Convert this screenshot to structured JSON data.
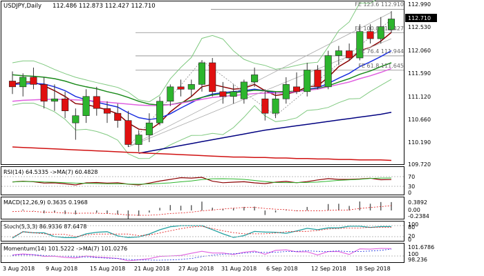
{
  "chart_header": {
    "symbol": "USDJPY,Daily",
    "ohlc": "112.486 112.873 112.427 112.710"
  },
  "price_axis": {
    "ticks": [
      "112.990",
      "112.530",
      "112.060",
      "111.590",
      "111.120",
      "110.660",
      "110.190",
      "109.720"
    ],
    "current_price": "112.710"
  },
  "fib_levels": [
    {
      "label": "FE 123.6 112.910",
      "value": 112.91
    },
    {
      "label": "FE 100.0 112.427",
      "value": 112.427
    },
    {
      "label": "FE 76.4 111.944",
      "value": 111.944
    },
    {
      "label": "FE 61.8 111.645",
      "value": 111.645
    }
  ],
  "date_axis": [
    "3 Aug 2018",
    "9 Aug 2018",
    "15 Aug 2018",
    "21 Aug 2018",
    "27 Aug 2018",
    "31 Aug 2018",
    "6 Sep 2018",
    "12 Sep 2018",
    "18 Sep 2018"
  ],
  "rsi": {
    "label": "RSI(14) 64.5335 ->MA(7) 60.4828",
    "levels": [
      "70",
      "30",
      "0"
    ]
  },
  "macd": {
    "label": "MACD(12,26,9) 0.3635 0.1968",
    "levels": [
      "0.3892",
      "0.00",
      "-0.2384"
    ]
  },
  "stoch": {
    "label": "Stoch(5,3,3) 86.9336 87.6478",
    "levels": [
      "100",
      "80",
      "20",
      "0"
    ]
  },
  "momentum": {
    "label": "Momentum(14) 101.5222 ->MA(7) 101.0276",
    "levels": [
      "101.6786",
      "100",
      "98.236"
    ]
  },
  "colors": {
    "bull": "#2db52d",
    "bear": "#e01010",
    "ma_fast": "#8b0000",
    "ma_blue": "#1a2fe0",
    "ma_green": "#1a8a1a",
    "ma_magenta": "#e060e0",
    "ma_navy": "#000080",
    "ma_red": "#d01010",
    "bollinger": "#7fc97f",
    "fib": "#888888"
  },
  "chart_data": {
    "type": "candlestick",
    "symbol": "USDJPY",
    "timeframe": "Daily",
    "ylim": [
      109.72,
      112.99
    ],
    "candles": [
      {
        "o": 111.42,
        "h": 111.62,
        "l": 111.15,
        "c": 111.3
      },
      {
        "o": 111.3,
        "h": 111.58,
        "l": 111.1,
        "c": 111.5
      },
      {
        "o": 111.5,
        "h": 111.7,
        "l": 111.25,
        "c": 111.35
      },
      {
        "o": 111.35,
        "h": 111.5,
        "l": 110.85,
        "c": 111.0
      },
      {
        "o": 111.0,
        "h": 111.35,
        "l": 110.8,
        "c": 111.05
      },
      {
        "o": 111.05,
        "h": 111.2,
        "l": 110.65,
        "c": 110.8
      },
      {
        "o": 110.55,
        "h": 110.85,
        "l": 110.2,
        "c": 110.7
      },
      {
        "o": 110.7,
        "h": 111.25,
        "l": 110.55,
        "c": 111.1
      },
      {
        "o": 111.1,
        "h": 111.3,
        "l": 110.7,
        "c": 110.85
      },
      {
        "o": 110.85,
        "h": 111.0,
        "l": 110.55,
        "c": 110.75
      },
      {
        "o": 110.75,
        "h": 110.95,
        "l": 110.45,
        "c": 110.6
      },
      {
        "o": 110.6,
        "h": 110.8,
        "l": 110.05,
        "c": 110.1
      },
      {
        "o": 110.1,
        "h": 110.4,
        "l": 109.95,
        "c": 110.3
      },
      {
        "o": 110.3,
        "h": 110.75,
        "l": 110.15,
        "c": 110.55
      },
      {
        "o": 110.55,
        "h": 111.1,
        "l": 110.5,
        "c": 111.0
      },
      {
        "o": 111.0,
        "h": 111.35,
        "l": 110.9,
        "c": 111.3
      },
      {
        "o": 111.3,
        "h": 111.45,
        "l": 111.1,
        "c": 111.25
      },
      {
        "o": 111.25,
        "h": 111.45,
        "l": 111.1,
        "c": 111.35
      },
      {
        "o": 111.35,
        "h": 111.85,
        "l": 111.2,
        "c": 111.8
      },
      {
        "o": 111.8,
        "h": 111.9,
        "l": 111.1,
        "c": 111.2
      },
      {
        "o": 111.2,
        "h": 111.4,
        "l": 110.95,
        "c": 111.1
      },
      {
        "o": 111.1,
        "h": 111.35,
        "l": 110.95,
        "c": 111.2
      },
      {
        "o": 111.05,
        "h": 111.45,
        "l": 110.95,
        "c": 111.4
      },
      {
        "o": 111.4,
        "h": 111.7,
        "l": 111.3,
        "c": 111.55
      },
      {
        "o": 111.05,
        "h": 111.25,
        "l": 110.6,
        "c": 110.75
      },
      {
        "o": 110.75,
        "h": 111.2,
        "l": 110.65,
        "c": 111.05
      },
      {
        "o": 111.05,
        "h": 111.5,
        "l": 110.95,
        "c": 111.35
      },
      {
        "o": 111.3,
        "h": 111.6,
        "l": 111.15,
        "c": 111.2
      },
      {
        "o": 111.2,
        "h": 111.8,
        "l": 111.1,
        "c": 111.65
      },
      {
        "o": 111.65,
        "h": 111.75,
        "l": 111.25,
        "c": 111.3
      },
      {
        "o": 111.3,
        "h": 112.05,
        "l": 111.25,
        "c": 111.95
      },
      {
        "o": 111.95,
        "h": 112.15,
        "l": 111.75,
        "c": 112.05
      },
      {
        "o": 112.05,
        "h": 112.2,
        "l": 111.85,
        "c": 111.9
      },
      {
        "o": 111.9,
        "h": 112.6,
        "l": 111.85,
        "c": 112.45
      },
      {
        "o": 112.45,
        "h": 112.6,
        "l": 112.2,
        "c": 112.3
      },
      {
        "o": 112.3,
        "h": 112.75,
        "l": 112.2,
        "c": 112.55
      },
      {
        "o": 112.486,
        "h": 112.873,
        "l": 112.427,
        "c": 112.71
      }
    ],
    "series": [
      {
        "name": "MA fast",
        "values": [
          111.36,
          111.4,
          111.4,
          111.32,
          111.22,
          111.1,
          110.95,
          110.93,
          110.88,
          110.82,
          110.74,
          110.55,
          110.42,
          110.4,
          110.55,
          110.78,
          110.95,
          111.1,
          111.3,
          111.35,
          111.3,
          111.25,
          111.27,
          111.35,
          111.22,
          111.12,
          111.15,
          111.2,
          111.3,
          111.32,
          111.5,
          111.72,
          111.85,
          112.05,
          112.12,
          112.25,
          112.43
        ]
      },
      {
        "name": "MA blue",
        "values": [
          111.35,
          111.36,
          111.37,
          111.36,
          111.3,
          111.22,
          111.1,
          111.03,
          110.98,
          110.93,
          110.88,
          110.76,
          110.66,
          110.62,
          110.65,
          110.74,
          110.86,
          110.97,
          111.08,
          111.15,
          111.18,
          111.2,
          111.22,
          111.25,
          111.22,
          111.17,
          111.18,
          111.2,
          111.25,
          111.28,
          111.37,
          111.48,
          111.58,
          111.72,
          111.82,
          111.93,
          112.05
        ]
      },
      {
        "name": "MA green",
        "values": [
          111.55,
          111.53,
          111.52,
          111.5,
          111.47,
          111.42,
          111.35,
          111.3,
          111.26,
          111.2,
          111.15,
          111.08,
          111.0,
          110.94,
          110.92,
          110.93,
          110.97,
          111.02,
          111.08,
          111.13,
          111.16,
          111.18,
          111.2,
          111.23,
          111.22,
          111.2,
          111.2,
          111.21,
          111.24,
          111.26,
          111.32,
          111.4,
          111.47,
          111.56,
          111.63,
          111.72,
          111.8
        ]
      },
      {
        "name": "MA magenta",
        "values": [
          111.0,
          111.02,
          111.03,
          111.04,
          111.04,
          111.04,
          111.03,
          111.02,
          111.0,
          110.98,
          110.96,
          110.94,
          110.92,
          110.91,
          110.91,
          110.93,
          110.96,
          111.0,
          111.04,
          111.08,
          111.1,
          111.12,
          111.14,
          111.16,
          111.17,
          111.17,
          111.18,
          111.2,
          111.23,
          111.25,
          111.3,
          111.35,
          111.4,
          111.47,
          111.53,
          111.6,
          111.68
        ]
      },
      {
        "name": "MA navy",
        "values": [
          null,
          null,
          null,
          null,
          null,
          null,
          null,
          null,
          null,
          null,
          null,
          null,
          109.92,
          109.96,
          110.0,
          110.04,
          110.08,
          110.12,
          110.16,
          110.2,
          110.24,
          110.28,
          110.32,
          110.36,
          110.4,
          110.43,
          110.46,
          110.49,
          110.52,
          110.55,
          110.58,
          110.61,
          110.64,
          110.67,
          110.7,
          110.73,
          110.77
        ]
      },
      {
        "name": "MA red",
        "values": [
          110.05,
          110.04,
          110.03,
          110.02,
          110.01,
          110.0,
          109.99,
          109.98,
          109.97,
          109.96,
          109.95,
          109.94,
          109.93,
          109.92,
          109.91,
          109.9,
          109.89,
          109.88,
          109.87,
          109.86,
          109.85,
          109.84,
          109.84,
          109.83,
          109.83,
          109.82,
          109.82,
          109.81,
          109.81,
          109.8,
          109.8,
          109.79,
          109.79,
          109.78,
          109.78,
          109.78,
          109.77
        ]
      }
    ]
  }
}
